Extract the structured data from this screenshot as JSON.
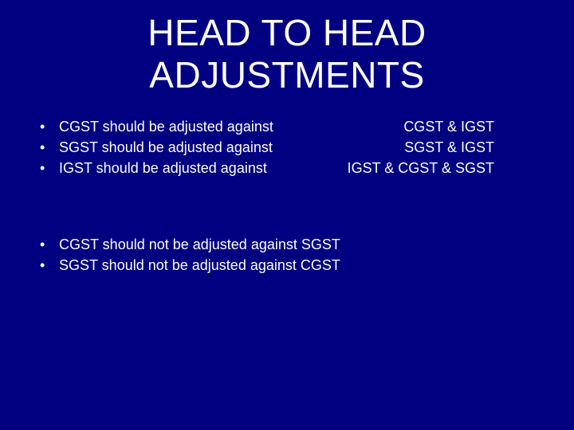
{
  "background_color": "#000080",
  "text_color": "#ffffff",
  "title": {
    "line1": "HEAD TO HEAD",
    "line2": "ADJUSTMENTS",
    "fontsize": 46
  },
  "section1": {
    "items": [
      {
        "left": "CGST should be adjusted against",
        "right": "CGST & IGST"
      },
      {
        "left": "SGST should be adjusted against",
        "right": "SGST & IGST"
      },
      {
        "left": "IGST should be adjusted against",
        "right": "IGST & CGST & SGST"
      }
    ]
  },
  "section2": {
    "items": [
      {
        "text": "CGST should not be adjusted against SGST"
      },
      {
        "text": "SGST should not be adjusted against CGST"
      }
    ]
  }
}
